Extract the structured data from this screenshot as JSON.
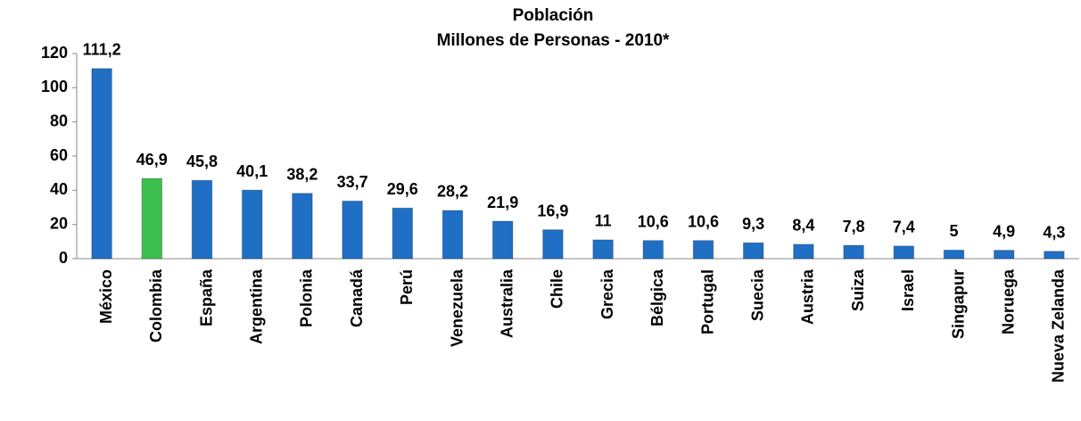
{
  "chart_data": {
    "type": "bar",
    "title": "Población",
    "subtitle": "Millones de Personas - 2010*",
    "categories": [
      "México",
      "Colombia",
      "España",
      "Argentina",
      "Polonia",
      "Canadá",
      "Perú",
      "Venezuela",
      "Australia",
      "Chile",
      "Grecia",
      "Bélgica",
      "Portugal",
      "Suecia",
      "Austria",
      "Suiza",
      "Israel",
      "Singapur",
      "Noruega",
      "Nueva Zelanda"
    ],
    "values": [
      111.2,
      46.9,
      45.8,
      40.1,
      38.2,
      33.7,
      29.6,
      28.2,
      21.9,
      16.9,
      11,
      10.6,
      10.6,
      9.3,
      8.4,
      7.8,
      7.4,
      5,
      4.9,
      4.3
    ],
    "value_labels": [
      "111,2",
      "46,9",
      "45,8",
      "40,1",
      "38,2",
      "33,7",
      "29,6",
      "28,2",
      "21,9",
      "16,9",
      "11",
      "10,6",
      "10,6",
      "9,3",
      "8,4",
      "7,8",
      "7,4",
      "5",
      "4,9",
      "4,3"
    ],
    "colors": [
      "#1f6fc5",
      "#3cbf4e",
      "#1f6fc5",
      "#1f6fc5",
      "#1f6fc5",
      "#1f6fc5",
      "#1f6fc5",
      "#1f6fc5",
      "#1f6fc5",
      "#1f6fc5",
      "#1f6fc5",
      "#1f6fc5",
      "#1f6fc5",
      "#1f6fc5",
      "#1f6fc5",
      "#1f6fc5",
      "#1f6fc5",
      "#1f6fc5",
      "#1f6fc5",
      "#1f6fc5"
    ],
    "ylim": [
      0,
      120
    ],
    "yticks": [
      0,
      20,
      40,
      60,
      80,
      100,
      120
    ],
    "grid": false
  }
}
